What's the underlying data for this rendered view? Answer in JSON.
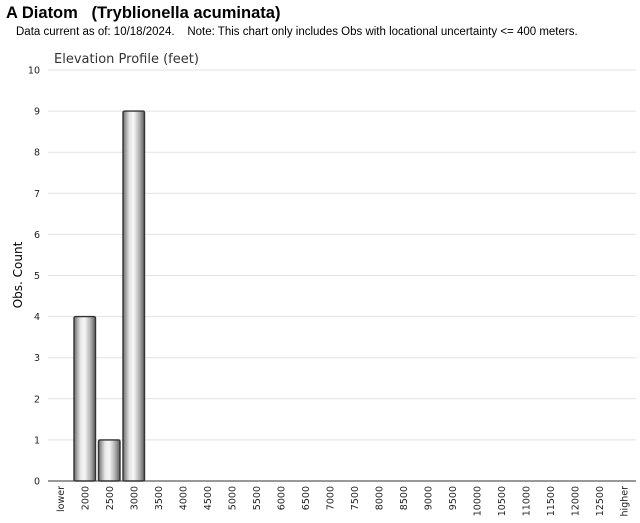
{
  "header": {
    "title": "A Diatom   (Tryblionella acuminata)",
    "subtitle": "Data current as of: 10/18/2024.    Note: This chart only includes Obs with locational uncertainty <= 400 meters."
  },
  "chart_data": {
    "type": "bar",
    "title": "Elevation Profile (feet)",
    "xlabel": "",
    "ylabel": "Obs. Count",
    "ylim": [
      0,
      10
    ],
    "yticks": [
      0,
      1,
      2,
      3,
      4,
      5,
      6,
      7,
      8,
      9,
      10
    ],
    "grid": true,
    "categories": [
      "lower",
      "2000",
      "2500",
      "3000",
      "3500",
      "4000",
      "4500",
      "5000",
      "5500",
      "6000",
      "6500",
      "7000",
      "7500",
      "8000",
      "8500",
      "9000",
      "9500",
      "10000",
      "10500",
      "11000",
      "11500",
      "12000",
      "12500",
      "higher"
    ],
    "values": [
      0,
      4,
      1,
      9,
      0,
      0,
      0,
      0,
      0,
      0,
      0,
      0,
      0,
      0,
      0,
      0,
      0,
      0,
      0,
      0,
      0,
      0,
      0,
      0
    ],
    "bar_color": "#a8a8a8"
  }
}
